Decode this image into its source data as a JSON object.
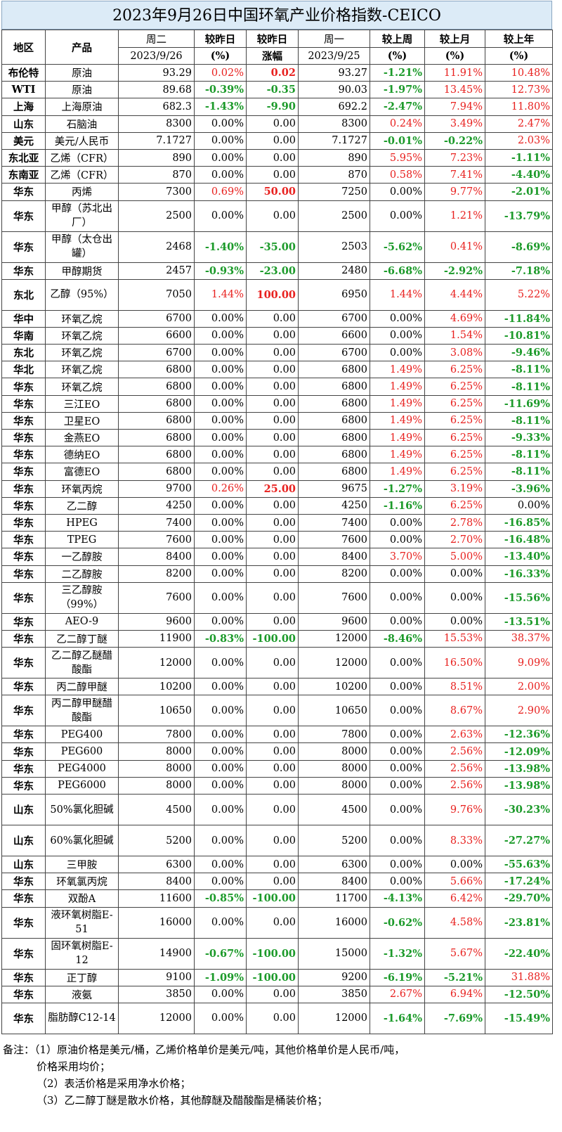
{
  "title": "2023年9月26日中国环氧产业价格指数-CEICO",
  "headers": {
    "region": "地区",
    "product": "产品",
    "day1": "周二",
    "day1_date": "2023/9/26",
    "chg_pct": "较昨日",
    "chg_pct_unit": "(%)",
    "chg_abs": "较昨日",
    "chg_abs_unit": "涨幅",
    "day2": "周一",
    "day2_date": "2023/9/25",
    "week": "较上周",
    "week_unit": "(%)",
    "month": "较上月",
    "month_unit": "(%)",
    "year": "较上年",
    "year_unit": "(%)"
  },
  "colors": {
    "up": "#e8211f",
    "down": "#1c9a2a",
    "title_bg": "#dcebf7"
  },
  "rows": [
    {
      "region": "布伦特",
      "product": "原油",
      "today": "93.29",
      "pct": "0.02%",
      "abs": "0.02",
      "prev": "93.27",
      "week": "-1.21%",
      "month": "11.91%",
      "year": "10.48%"
    },
    {
      "region": "WTI",
      "product": "原油",
      "today": "89.68",
      "pct": "-0.39%",
      "abs": "-0.35",
      "prev": "90.03",
      "week": "-1.97%",
      "month": "13.45%",
      "year": "12.73%"
    },
    {
      "region": "上海",
      "product": "上海原油",
      "today": "682.3",
      "pct": "-1.43%",
      "abs": "-9.90",
      "prev": "692.2",
      "week": "-2.47%",
      "month": "7.94%",
      "year": "11.80%"
    },
    {
      "region": "山东",
      "product": "石脑油",
      "today": "8300",
      "pct": "0.00%",
      "abs": "0.00",
      "prev": "8300",
      "week": "0.24%",
      "month": "3.49%",
      "year": "2.47%"
    },
    {
      "region": "美元",
      "product": "美元/人民币",
      "today": "7.1727",
      "pct": "0.00%",
      "abs": "0.00",
      "prev": "7.1727",
      "week": "-0.01%",
      "month": "-0.22%",
      "year": "2.03%"
    },
    {
      "region": "东北亚",
      "product": "乙烯（CFR）",
      "today": "890",
      "pct": "0.00%",
      "abs": "0.00",
      "prev": "890",
      "week": "5.95%",
      "month": "7.23%",
      "year": "-1.11%"
    },
    {
      "region": "东南亚",
      "product": "乙烯（CFR）",
      "today": "870",
      "pct": "0.00%",
      "abs": "0.00",
      "prev": "870",
      "week": "0.58%",
      "month": "7.41%",
      "year": "-4.40%"
    },
    {
      "region": "华东",
      "product": "丙烯",
      "today": "7300",
      "pct": "0.69%",
      "abs": "50.00",
      "prev": "7250",
      "week": "0.00%",
      "month": "9.77%",
      "year": "-2.01%"
    },
    {
      "region": "华东",
      "product": "甲醇（苏北出厂）",
      "today": "2500",
      "pct": "0.00%",
      "abs": "0.00",
      "prev": "2500",
      "week": "0.00%",
      "month": "1.21%",
      "year": "-13.79%",
      "tall": true
    },
    {
      "region": "华东",
      "product": "甲醇（太仓出罐）",
      "today": "2468",
      "pct": "-1.40%",
      "abs": "-35.00",
      "prev": "2503",
      "week": "-5.62%",
      "month": "0.41%",
      "year": "-8.69%",
      "tall": true
    },
    {
      "region": "华东",
      "product": "甲醇期货",
      "today": "2457",
      "pct": "-0.93%",
      "abs": "-23.00",
      "prev": "2480",
      "week": "-6.68%",
      "month": "-2.92%",
      "year": "-7.18%"
    },
    {
      "region": "东北",
      "product": "乙醇（95%）",
      "today": "7050",
      "pct": "1.44%",
      "abs": "100.00",
      "prev": "6950",
      "week": "1.44%",
      "month": "4.44%",
      "year": "5.22%",
      "tall": true
    },
    {
      "region": "华中",
      "product": "环氧乙烷",
      "today": "6700",
      "pct": "0.00%",
      "abs": "0.00",
      "prev": "6700",
      "week": "0.00%",
      "month": "4.69%",
      "year": "-11.84%"
    },
    {
      "region": "华南",
      "product": "环氧乙烷",
      "today": "6600",
      "pct": "0.00%",
      "abs": "0.00",
      "prev": "6600",
      "week": "0.00%",
      "month": "1.54%",
      "year": "-10.81%"
    },
    {
      "region": "东北",
      "product": "环氧乙烷",
      "today": "6700",
      "pct": "0.00%",
      "abs": "0.00",
      "prev": "6700",
      "week": "0.00%",
      "month": "3.08%",
      "year": "-9.46%"
    },
    {
      "region": "华北",
      "product": "环氧乙烷",
      "today": "6800",
      "pct": "0.00%",
      "abs": "0.00",
      "prev": "6800",
      "week": "1.49%",
      "month": "6.25%",
      "year": "-8.11%"
    },
    {
      "region": "华东",
      "product": "环氧乙烷",
      "today": "6800",
      "pct": "0.00%",
      "abs": "0.00",
      "prev": "6800",
      "week": "1.49%",
      "month": "6.25%",
      "year": "-8.11%"
    },
    {
      "region": "华东",
      "product": "三江EO",
      "today": "6800",
      "pct": "0.00%",
      "abs": "0.00",
      "prev": "6800",
      "week": "1.49%",
      "month": "6.25%",
      "year": "-11.69%"
    },
    {
      "region": "华东",
      "product": "卫星EO",
      "today": "6800",
      "pct": "0.00%",
      "abs": "0.00",
      "prev": "6800",
      "week": "1.49%",
      "month": "6.25%",
      "year": "-8.11%"
    },
    {
      "region": "华东",
      "product": "金燕EO",
      "today": "6800",
      "pct": "0.00%",
      "abs": "0.00",
      "prev": "6800",
      "week": "1.49%",
      "month": "6.25%",
      "year": "-9.33%"
    },
    {
      "region": "华东",
      "product": "德纳EO",
      "today": "6800",
      "pct": "0.00%",
      "abs": "0.00",
      "prev": "6800",
      "week": "1.49%",
      "month": "6.25%",
      "year": "-8.11%"
    },
    {
      "region": "华东",
      "product": "富德EO",
      "today": "6800",
      "pct": "0.00%",
      "abs": "0.00",
      "prev": "6800",
      "week": "1.49%",
      "month": "6.25%",
      "year": "-8.11%"
    },
    {
      "region": "华东",
      "product": "环氧丙烷",
      "today": "9700",
      "pct": "0.26%",
      "abs": "25.00",
      "prev": "9675",
      "week": "-1.27%",
      "month": "3.19%",
      "year": "-3.96%"
    },
    {
      "region": "华东",
      "product": "乙二醇",
      "today": "4250",
      "pct": "0.00%",
      "abs": "0.00",
      "prev": "4250",
      "week": "-1.16%",
      "month": "6.25%",
      "year": "0.00%"
    },
    {
      "region": "华东",
      "product": "HPEG",
      "today": "7400",
      "pct": "0.00%",
      "abs": "0.00",
      "prev": "7400",
      "week": "0.00%",
      "month": "2.78%",
      "year": "-16.85%"
    },
    {
      "region": "华东",
      "product": "TPEG",
      "today": "7600",
      "pct": "0.00%",
      "abs": "0.00",
      "prev": "7600",
      "week": "0.00%",
      "month": "2.70%",
      "year": "-16.48%"
    },
    {
      "region": "华东",
      "product": "一乙醇胺",
      "today": "8400",
      "pct": "0.00%",
      "abs": "0.00",
      "prev": "8400",
      "week": "3.70%",
      "month": "5.00%",
      "year": "-13.40%"
    },
    {
      "region": "华东",
      "product": "二乙醇胺",
      "today": "8200",
      "pct": "0.00%",
      "abs": "0.00",
      "prev": "8200",
      "week": "0.00%",
      "month": "0.00%",
      "year": "-16.33%"
    },
    {
      "region": "华东",
      "product": "三乙醇胺（99%）",
      "today": "7600",
      "pct": "0.00%",
      "abs": "0.00",
      "prev": "7600",
      "week": "0.00%",
      "month": "0.00%",
      "year": "-15.56%",
      "tall": true
    },
    {
      "region": "华东",
      "product": "AEO-9",
      "today": "9600",
      "pct": "0.00%",
      "abs": "0.00",
      "prev": "9600",
      "week": "0.00%",
      "month": "0.00%",
      "year": "-13.51%"
    },
    {
      "region": "华东",
      "product": "乙二醇丁醚",
      "today": "11900",
      "pct": "-0.83%",
      "abs": "-100.00",
      "prev": "12000",
      "week": "-8.46%",
      "month": "15.53%",
      "year": "38.37%"
    },
    {
      "region": "华东",
      "product": "乙二醇乙醚醋酸酯",
      "today": "12000",
      "pct": "0.00%",
      "abs": "0.00",
      "prev": "12000",
      "week": "0.00%",
      "month": "16.50%",
      "year": "9.09%",
      "tall": true
    },
    {
      "region": "华东",
      "product": "丙二醇甲醚",
      "today": "10200",
      "pct": "0.00%",
      "abs": "0.00",
      "prev": "10200",
      "week": "0.00%",
      "month": "8.51%",
      "year": "2.00%"
    },
    {
      "region": "华东",
      "product": "丙二醇甲醚醋酸酯",
      "today": "10650",
      "pct": "0.00%",
      "abs": "0.00",
      "prev": "10650",
      "week": "0.00%",
      "month": "8.67%",
      "year": "2.90%",
      "tall": true
    },
    {
      "region": "华东",
      "product": "PEG400",
      "today": "7800",
      "pct": "0.00%",
      "abs": "0.00",
      "prev": "7800",
      "week": "0.00%",
      "month": "2.63%",
      "year": "-12.36%"
    },
    {
      "region": "华东",
      "product": "PEG600",
      "today": "8000",
      "pct": "0.00%",
      "abs": "0.00",
      "prev": "8000",
      "week": "0.00%",
      "month": "2.56%",
      "year": "-12.09%"
    },
    {
      "region": "华东",
      "product": "PEG4000",
      "today": "8000",
      "pct": "0.00%",
      "abs": "0.00",
      "prev": "8000",
      "week": "0.00%",
      "month": "2.56%",
      "year": "-13.98%"
    },
    {
      "region": "华东",
      "product": "PEG6000",
      "today": "8000",
      "pct": "0.00%",
      "abs": "0.00",
      "prev": "8000",
      "week": "0.00%",
      "month": "2.56%",
      "year": "-13.98%"
    },
    {
      "region": "山东",
      "product": "50%氯化胆碱",
      "today": "4500",
      "pct": "0.00%",
      "abs": "0.00",
      "prev": "4500",
      "week": "0.00%",
      "month": "9.76%",
      "year": "-30.23%",
      "tall": true
    },
    {
      "region": "山东",
      "product": "60%氯化胆碱",
      "today": "5200",
      "pct": "0.00%",
      "abs": "0.00",
      "prev": "5200",
      "week": "0.00%",
      "month": "8.33%",
      "year": "-27.27%",
      "tall": true
    },
    {
      "region": "山东",
      "product": "三甲胺",
      "today": "6300",
      "pct": "0.00%",
      "abs": "0.00",
      "prev": "6300",
      "week": "0.00%",
      "month": "0.00%",
      "year": "-55.63%"
    },
    {
      "region": "华东",
      "product": "环氧氯丙烷",
      "today": "8400",
      "pct": "0.00%",
      "abs": "0.00",
      "prev": "8400",
      "week": "0.00%",
      "month": "5.66%",
      "year": "-17.24%"
    },
    {
      "region": "华东",
      "product": "双酚A",
      "today": "11600",
      "pct": "-0.85%",
      "abs": "-100.00",
      "prev": "11700",
      "week": "-4.13%",
      "month": "6.42%",
      "year": "-29.70%"
    },
    {
      "region": "华东",
      "product": "液环氧树脂E-51",
      "today": "16000",
      "pct": "0.00%",
      "abs": "0.00",
      "prev": "16000",
      "week": "-0.62%",
      "month": "4.58%",
      "year": "-23.81%",
      "tall": true
    },
    {
      "region": "华东",
      "product": "固环氧树脂E-12",
      "today": "14900",
      "pct": "-0.67%",
      "abs": "-100.00",
      "prev": "15000",
      "week": "-1.32%",
      "month": "5.67%",
      "year": "-22.40%",
      "tall": true
    },
    {
      "region": "华东",
      "product": "正丁醇",
      "today": "9100",
      "pct": "-1.09%",
      "abs": "-100.00",
      "prev": "9200",
      "week": "-6.19%",
      "month": "-5.21%",
      "year": "31.88%"
    },
    {
      "region": "华东",
      "product": "液氨",
      "today": "3850",
      "pct": "0.00%",
      "abs": "0.00",
      "prev": "3850",
      "week": "2.67%",
      "month": "6.94%",
      "year": "-12.50%"
    },
    {
      "region": "华东",
      "product": "脂肪醇C12-14",
      "today": "12000",
      "pct": "0.00%",
      "abs": "0.00",
      "prev": "12000",
      "week": "-1.64%",
      "month": "-7.69%",
      "year": "-15.49%",
      "tall": true
    }
  ],
  "notes": [
    "备注：（1）原油价格是美元/桶，乙烯价格单价是美元/吨，其他价格单价是人民币/吨，",
    "价格采用均价；",
    "（2）表活价格是采用净水价格；",
    "（3）乙二醇丁醚是散水价格，其他醇醚及醋酸酯是桶装价格；"
  ]
}
